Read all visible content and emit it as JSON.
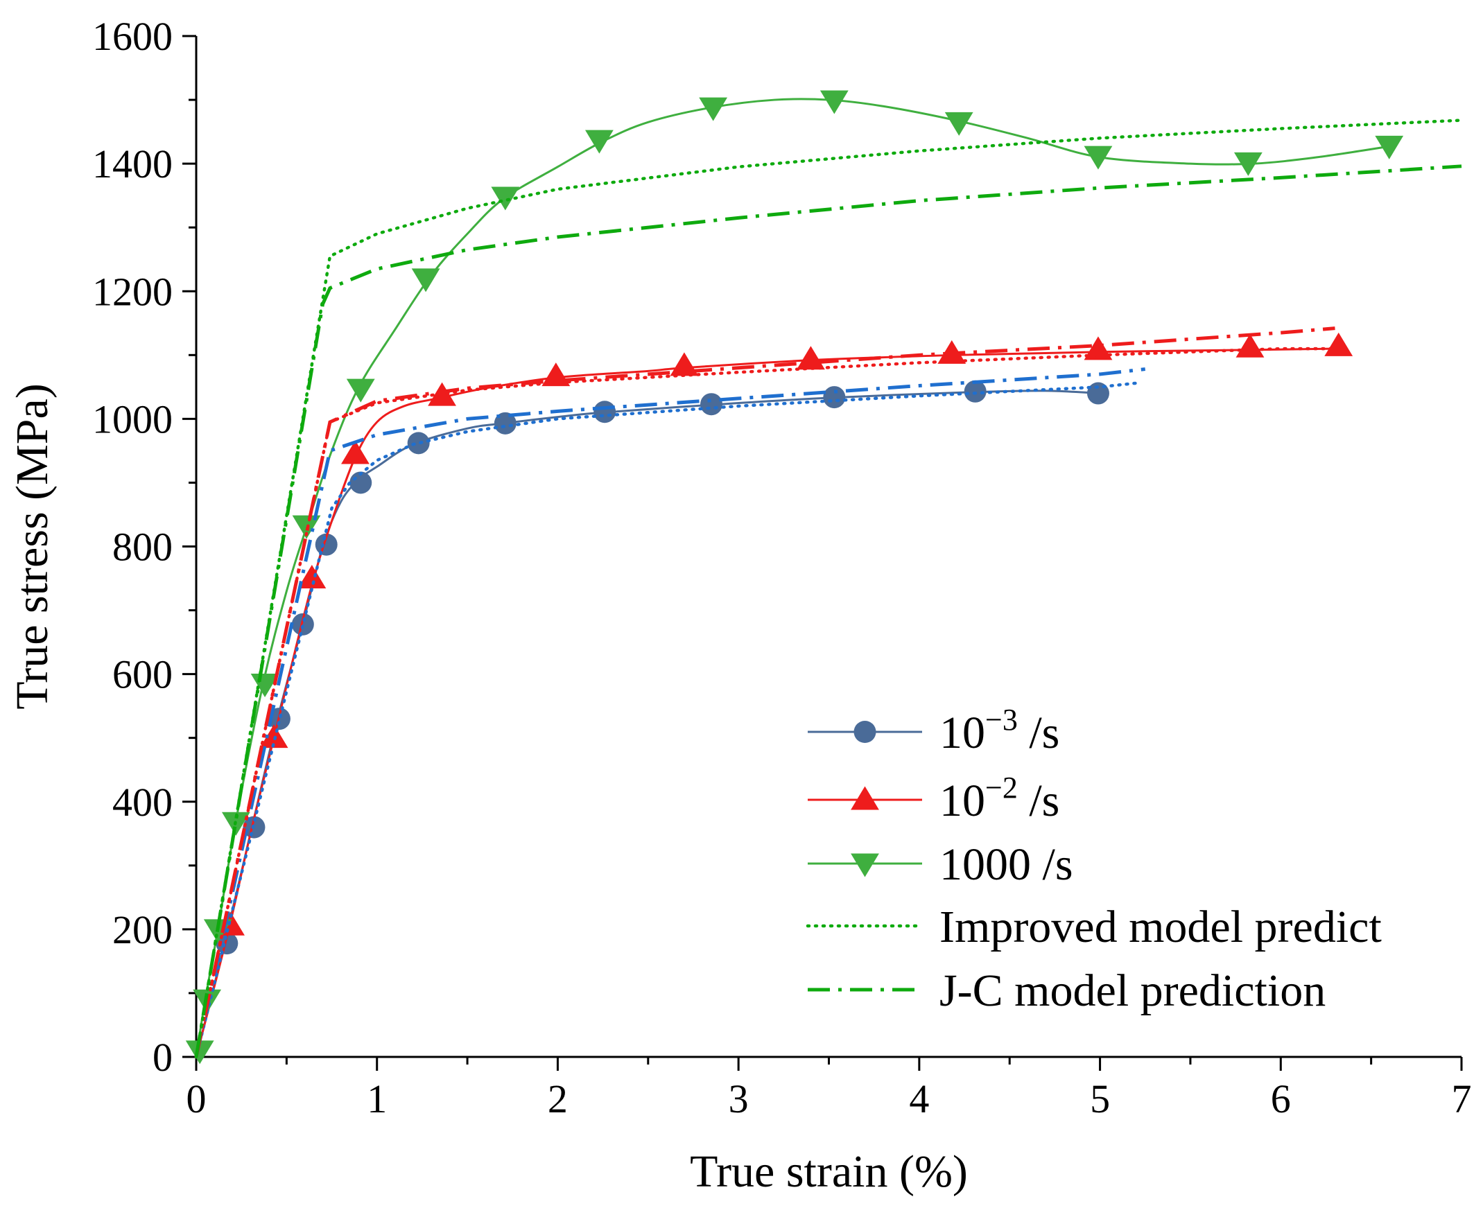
{
  "chart_data": {
    "type": "line",
    "title": "",
    "xlabel": "True strain (%)",
    "ylabel": "True stress (MPa)",
    "xlim": [
      0,
      7
    ],
    "ylim": [
      0,
      1600
    ],
    "x_ticks": [
      "0",
      "1",
      "2",
      "3",
      "4",
      "5",
      "6",
      "7"
    ],
    "y_ticks": [
      "0",
      "200",
      "400",
      "600",
      "800",
      "1000",
      "1200",
      "1400",
      "1600"
    ],
    "grid": false,
    "legend_position": "bottom-right",
    "legend": [
      {
        "label": "10",
        "sup": "−3",
        "suffix": " /s",
        "style": "marker-circle"
      },
      {
        "label": "10",
        "sup": "−2",
        "suffix": " /s",
        "style": "marker-triangle-up"
      },
      {
        "label": "1000 /s",
        "sup": "",
        "suffix": "",
        "style": "marker-triangle-down"
      },
      {
        "label": "Improved model predict",
        "sup": "",
        "suffix": "",
        "style": "dotted"
      },
      {
        "label": "J-C model prediction",
        "sup": "",
        "suffix": "",
        "style": "dash-dot"
      }
    ],
    "series": [
      {
        "name": "10^-3 /s (experiment)",
        "color": "#4a6b98",
        "marker": "circle",
        "curve": [
          [
            0,
            0
          ],
          [
            0.15,
            170
          ],
          [
            0.3,
            350
          ],
          [
            0.45,
            530
          ],
          [
            0.6,
            690
          ],
          [
            0.7,
            800
          ],
          [
            0.8,
            870
          ],
          [
            0.9,
            905
          ],
          [
            1.0,
            925
          ],
          [
            1.2,
            960
          ],
          [
            1.5,
            985
          ],
          [
            1.7,
            993
          ],
          [
            2.0,
            1003
          ],
          [
            2.25,
            1010
          ],
          [
            2.85,
            1022
          ],
          [
            3.5,
            1033
          ],
          [
            4.3,
            1042
          ],
          [
            4.7,
            1044
          ],
          [
            5.0,
            1040
          ]
        ],
        "markers": [
          [
            0.17,
            178
          ],
          [
            0.32,
            360
          ],
          [
            0.46,
            530
          ],
          [
            0.59,
            678
          ],
          [
            0.72,
            803
          ],
          [
            0.91,
            900
          ],
          [
            1.23,
            962
          ],
          [
            1.71,
            993
          ],
          [
            2.26,
            1011
          ],
          [
            2.85,
            1023
          ],
          [
            3.53,
            1034
          ],
          [
            4.31,
            1043
          ],
          [
            4.99,
            1040
          ]
        ]
      },
      {
        "name": "10^-2 /s (experiment)",
        "color": "#ee1c1c",
        "marker": "triangle-up",
        "curve": [
          [
            0,
            0
          ],
          [
            0.18,
            200
          ],
          [
            0.3,
            350
          ],
          [
            0.43,
            500
          ],
          [
            0.55,
            640
          ],
          [
            0.65,
            750
          ],
          [
            0.75,
            840
          ],
          [
            0.88,
            940
          ],
          [
            1.0,
            995
          ],
          [
            1.15,
            1020
          ],
          [
            1.35,
            1033
          ],
          [
            1.6,
            1048
          ],
          [
            2.0,
            1065
          ],
          [
            2.5,
            1075
          ],
          [
            2.7,
            1080
          ],
          [
            3.4,
            1092
          ],
          [
            4.2,
            1100
          ],
          [
            5.0,
            1105
          ],
          [
            5.8,
            1108
          ],
          [
            6.3,
            1110
          ]
        ],
        "markers": [
          [
            0.19,
            206
          ],
          [
            0.43,
            500
          ],
          [
            0.64,
            750
          ],
          [
            0.88,
            945
          ],
          [
            1.36,
            1036
          ],
          [
            1.99,
            1067
          ],
          [
            2.7,
            1083
          ],
          [
            3.4,
            1093
          ],
          [
            4.18,
            1102
          ],
          [
            4.99,
            1108
          ],
          [
            5.83,
            1112
          ],
          [
            6.32,
            1114
          ]
        ]
      },
      {
        "name": "1000 /s (experiment)",
        "color": "#3faf3f",
        "marker": "triangle-down",
        "curve": [
          [
            0,
            0
          ],
          [
            0.05,
            90
          ],
          [
            0.12,
            200
          ],
          [
            0.22,
            370
          ],
          [
            0.37,
            585
          ],
          [
            0.5,
            730
          ],
          [
            0.61,
            830
          ],
          [
            0.75,
            950
          ],
          [
            0.9,
            1050
          ],
          [
            1.1,
            1140
          ],
          [
            1.3,
            1225
          ],
          [
            1.5,
            1290
          ],
          [
            1.7,
            1345
          ],
          [
            2.0,
            1395
          ],
          [
            2.25,
            1435
          ],
          [
            2.5,
            1465
          ],
          [
            2.85,
            1488
          ],
          [
            3.2,
            1500
          ],
          [
            3.5,
            1500
          ],
          [
            3.8,
            1490
          ],
          [
            4.2,
            1468
          ],
          [
            4.6,
            1440
          ],
          [
            5.0,
            1410
          ],
          [
            5.5,
            1400
          ],
          [
            5.85,
            1400
          ],
          [
            6.2,
            1410
          ],
          [
            6.62,
            1428
          ]
        ],
        "markers": [
          [
            0.02,
            10
          ],
          [
            0.06,
            90
          ],
          [
            0.12,
            200
          ],
          [
            0.22,
            368
          ],
          [
            0.38,
            585
          ],
          [
            0.61,
            833
          ],
          [
            0.91,
            1047
          ],
          [
            1.27,
            1220
          ],
          [
            1.71,
            1348
          ],
          [
            2.23,
            1437
          ],
          [
            2.86,
            1488
          ],
          [
            3.53,
            1499
          ],
          [
            4.22,
            1465
          ],
          [
            4.99,
            1412
          ],
          [
            5.82,
            1402
          ],
          [
            6.6,
            1428
          ]
        ]
      },
      {
        "name": "Improved model prediction (10^-3 /s)",
        "color": "#1f6fcf",
        "style": "dotted",
        "curve": [
          [
            0,
            0
          ],
          [
            0.75,
            860
          ],
          [
            0.85,
            900
          ],
          [
            1.0,
            935
          ],
          [
            1.2,
            960
          ],
          [
            1.5,
            980
          ],
          [
            2.0,
            1000
          ],
          [
            3.0,
            1020
          ],
          [
            4.0,
            1036
          ],
          [
            5.0,
            1050
          ],
          [
            5.2,
            1056
          ]
        ]
      },
      {
        "name": "J-C model prediction (10^-3 /s)",
        "color": "#1f6fcf",
        "style": "dash-dot",
        "curve": [
          [
            0,
            0
          ],
          [
            0.74,
            950
          ],
          [
            1.0,
            975
          ],
          [
            1.5,
            1000
          ],
          [
            2.0,
            1012
          ],
          [
            3.0,
            1032
          ],
          [
            4.0,
            1052
          ],
          [
            5.0,
            1070
          ],
          [
            5.25,
            1078
          ]
        ]
      },
      {
        "name": "Improved model prediction (10^-2 /s)",
        "color": "#ee1c1c",
        "style": "dotted",
        "curve": [
          [
            0,
            0
          ],
          [
            0.74,
            995
          ],
          [
            1.0,
            1025
          ],
          [
            1.5,
            1045
          ],
          [
            2.0,
            1057
          ],
          [
            3.0,
            1073
          ],
          [
            4.0,
            1088
          ],
          [
            5.0,
            1100
          ],
          [
            6.0,
            1110
          ],
          [
            6.35,
            1110
          ]
        ]
      },
      {
        "name": "J-C model prediction (10^-2 /s)",
        "color": "#ee1c1c",
        "style": "dash-dot",
        "curve": [
          [
            0,
            0
          ],
          [
            0.74,
            995
          ],
          [
            1.0,
            1028
          ],
          [
            1.5,
            1048
          ],
          [
            2.0,
            1060
          ],
          [
            3.0,
            1080
          ],
          [
            4.0,
            1100
          ],
          [
            5.0,
            1115
          ],
          [
            6.0,
            1135
          ],
          [
            6.3,
            1142
          ]
        ]
      },
      {
        "name": "Improved model prediction (1000 /s)",
        "color": "#0eaa0e",
        "style": "dotted",
        "curve": [
          [
            0,
            0
          ],
          [
            0.74,
            1255
          ],
          [
            1.0,
            1290
          ],
          [
            1.5,
            1330
          ],
          [
            2.0,
            1360
          ],
          [
            3.0,
            1395
          ],
          [
            4.0,
            1420
          ],
          [
            5.0,
            1440
          ],
          [
            6.0,
            1455
          ],
          [
            7.0,
            1468
          ]
        ]
      },
      {
        "name": "J-C model prediction (1000 /s)",
        "color": "#0eaa0e",
        "style": "dash-dot",
        "curve": [
          [
            0,
            0
          ],
          [
            0.7,
            1180
          ],
          [
            0.74,
            1205
          ],
          [
            1.0,
            1235
          ],
          [
            1.5,
            1265
          ],
          [
            2.0,
            1285
          ],
          [
            3.0,
            1315
          ],
          [
            4.0,
            1342
          ],
          [
            5.0,
            1362
          ],
          [
            6.0,
            1378
          ],
          [
            7.0,
            1396
          ]
        ]
      }
    ]
  }
}
